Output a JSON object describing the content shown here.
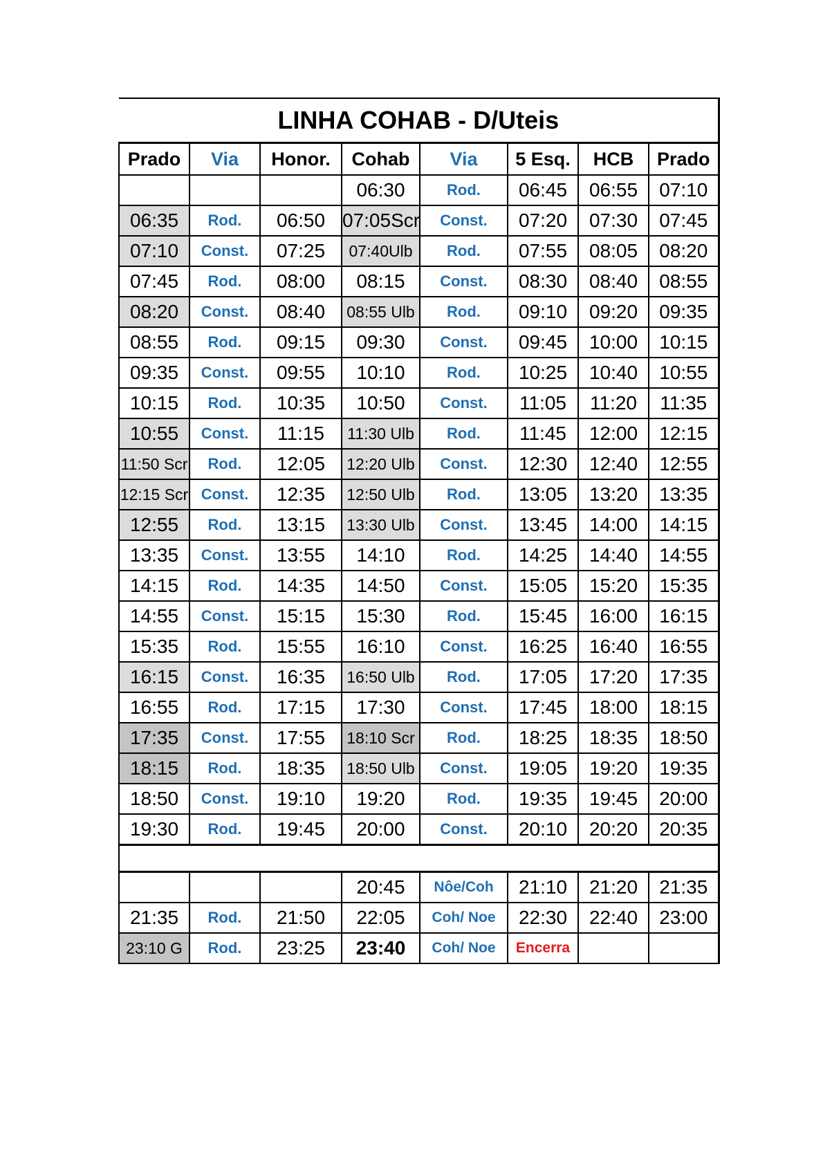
{
  "title": "LINHA COHAB - D/Uteis",
  "headers": [
    "Prado",
    "Via",
    "Honor.",
    "Cohab",
    "Via",
    "5 Esq.",
    "HCB",
    "Prado"
  ],
  "rows": [
    [
      "",
      "",
      "",
      "06:30",
      "Rod.",
      "06:45",
      "06:55",
      "07:10"
    ],
    [
      "06:35",
      "Rod.",
      "06:50",
      "07:05Scr",
      "Const.",
      "07:20",
      "07:30",
      "07:45"
    ],
    [
      "07:10",
      "Const.",
      "07:25",
      "07:40Ulb",
      "Rod.",
      "07:55",
      "08:05",
      "08:20"
    ],
    [
      "07:45",
      "Rod.",
      "08:00",
      "08:15",
      "Const.",
      "08:30",
      "08:40",
      "08:55"
    ],
    [
      "08:20",
      "Const.",
      "08:40",
      "08:55 Ulb",
      "Rod.",
      "09:10",
      "09:20",
      "09:35"
    ],
    [
      "08:55",
      "Rod.",
      "09:15",
      "09:30",
      "Const.",
      "09:45",
      "10:00",
      "10:15"
    ],
    [
      "09:35",
      "Const.",
      "09:55",
      "10:10",
      "Rod.",
      "10:25",
      "10:40",
      "10:55"
    ],
    [
      "10:15",
      "Rod.",
      "10:35",
      "10:50",
      "Const.",
      "11:05",
      "11:20",
      "11:35"
    ],
    [
      "10:55",
      "Const.",
      "11:15",
      "11:30 Ulb",
      "Rod.",
      "11:45",
      "12:00",
      "12:15"
    ],
    [
      "11:50 Scr",
      "Rod.",
      "12:05",
      "12:20 Ulb",
      "Const.",
      "12:30",
      "12:40",
      "12:55"
    ],
    [
      "12:15 Scr",
      "Const.",
      "12:35",
      "12:50 Ulb",
      "Rod.",
      "13:05",
      "13:20",
      "13:35"
    ],
    [
      "12:55",
      "Rod.",
      "13:15",
      "13:30 Ulb",
      "Const.",
      "13:45",
      "14:00",
      "14:15"
    ],
    [
      "13:35",
      "Const.",
      "13:55",
      "14:10",
      "Rod.",
      "14:25",
      "14:40",
      "14:55"
    ],
    [
      "14:15",
      "Rod.",
      "14:35",
      "14:50",
      "Const.",
      "15:05",
      "15:20",
      "15:35"
    ],
    [
      "14:55",
      "Const.",
      "15:15",
      "15:30",
      "Rod.",
      "15:45",
      "16:00",
      "16:15"
    ],
    [
      "15:35",
      "Rod.",
      "15:55",
      "16:10",
      "Const.",
      "16:25",
      "16:40",
      "16:55"
    ],
    [
      "16:15",
      "Const.",
      "16:35",
      "16:50 Ulb",
      "Rod.",
      "17:05",
      "17:20",
      "17:35"
    ],
    [
      "16:55",
      "Rod.",
      "17:15",
      "17:30",
      "Const.",
      "17:45",
      "18:00",
      "18:15"
    ],
    [
      "17:35",
      "Const.",
      "17:55",
      "18:10 Scr",
      "Rod.",
      "18:25",
      "18:35",
      "18:50"
    ],
    [
      "18:15",
      "Rod.",
      "18:35",
      "18:50 Ulb",
      "Const.",
      "19:05",
      "19:20",
      "19:35"
    ],
    [
      "18:50",
      "Const.",
      "19:10",
      "19:20",
      "Rod.",
      "19:35",
      "19:45",
      "20:00"
    ],
    [
      "19:30",
      "Rod.",
      "19:45",
      "20:00",
      "Const.",
      "20:10",
      "20:20",
      "20:35"
    ]
  ],
  "night_rows": [
    [
      "",
      "",
      "",
      "20:45",
      "Nôe/Coh",
      "21:10",
      "21:20",
      "21:35"
    ],
    [
      "21:35",
      "Rod.",
      "21:50",
      "22:05",
      "Coh/ Noe",
      "22:30",
      "22:40",
      "23:00"
    ],
    [
      "23:10 G",
      "Rod.",
      "23:25",
      "23:40",
      "Coh/ Noe",
      "Encerra",
      "",
      ""
    ]
  ],
  "colors": {
    "via_text": "#1f6fb4",
    "end_text": "#e11b1b",
    "shade_light": "#dcdcdc",
    "shade_dark": "#c4c4c4"
  }
}
